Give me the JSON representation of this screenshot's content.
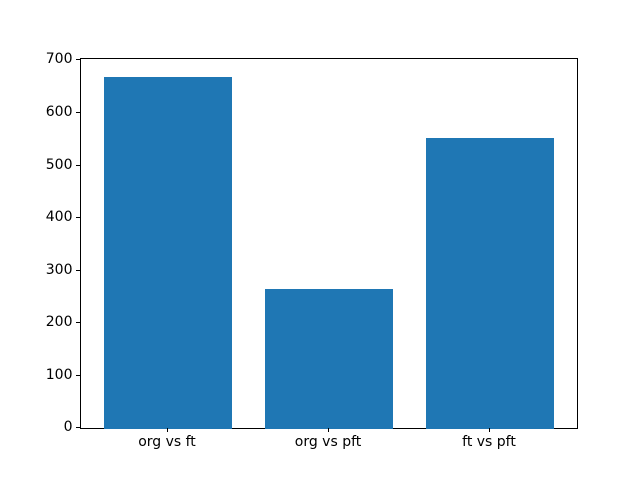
{
  "figure": {
    "background": "#ffffff",
    "frame_color": "#000000"
  },
  "chart_data": {
    "type": "bar",
    "title": "",
    "xlabel": "",
    "ylabel": "",
    "categories": [
      "org vs ft",
      "org vs pft",
      "ft vs pft"
    ],
    "values": [
      670,
      265,
      553
    ],
    "bar_color": "#1f77b4",
    "yticks": [
      0,
      100,
      200,
      300,
      400,
      500,
      600,
      700
    ],
    "ylim": [
      0,
      703.5
    ],
    "grid": false,
    "legend": null
  }
}
